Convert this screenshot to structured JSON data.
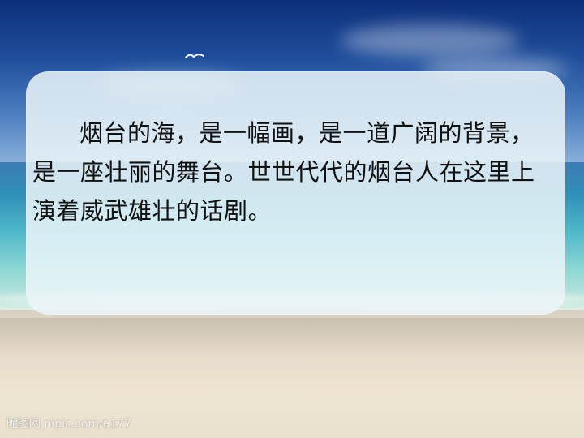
{
  "slide": {
    "passage": "烟台的海，是一幅画，是一道广阔的背景，是一座壮丽的舞台。世世代代的烟台人在这里上演着威武雄壮的话剧。",
    "watermark": "昵图网 nipic.com/a177"
  },
  "colors": {
    "panel": "#eaf4f8",
    "text": "#111111",
    "sky": "#1f4e9c",
    "sea": "#4fb7c9",
    "sand": "#e7dccb"
  }
}
